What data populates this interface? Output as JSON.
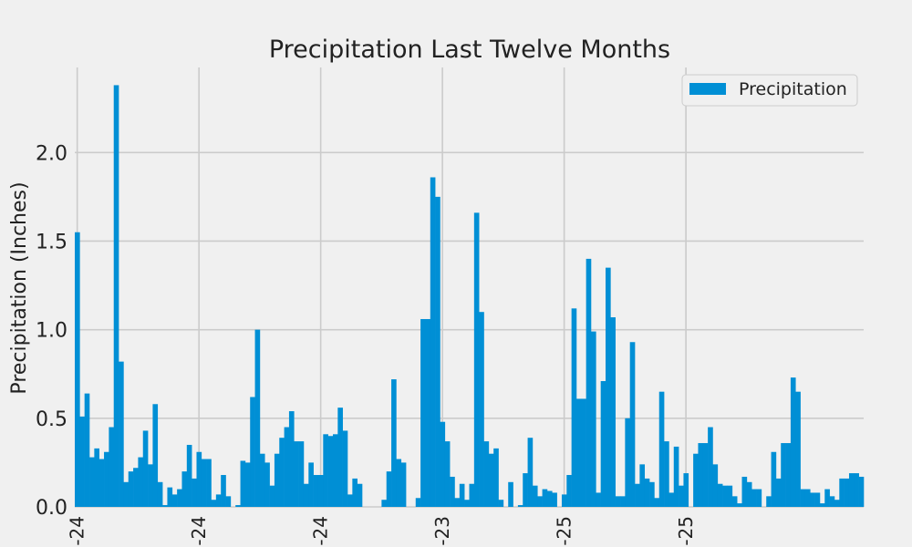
{
  "chart_data": {
    "type": "bar",
    "title": "Precipitation Last Twelve Months",
    "xlabel": "",
    "ylabel": "Precipitation (Inches)",
    "ylim": [
      0,
      2.48
    ],
    "yticks": [
      0.0,
      0.5,
      1.0,
      1.5,
      2.0
    ],
    "ytick_labels": [
      "0.0",
      "0.5",
      "1.0",
      "1.5",
      "2.0"
    ],
    "xtick_labels": [
      "-24",
      "-24",
      "-24",
      "-23",
      "-25",
      "-25"
    ],
    "xtick_positions": [
      0,
      25,
      50,
      75,
      100,
      125
    ],
    "grid": true,
    "legend": {
      "entries": [
        "Precipitation"
      ],
      "placement": "top-right"
    },
    "colors": {
      "bar": "#008fd5",
      "background": "#f0f0f0",
      "grid": "#cbcbcb"
    },
    "series": [
      {
        "name": "Precipitation",
        "values": [
          1.55,
          0.51,
          0.64,
          0.28,
          0.33,
          0.27,
          0.31,
          0.45,
          2.38,
          0.82,
          0.14,
          0.2,
          0.22,
          0.28,
          0.43,
          0.24,
          0.58,
          0.14,
          0.01,
          0.11,
          0.07,
          0.1,
          0.2,
          0.35,
          0.16,
          0.31,
          0.27,
          0.27,
          0.04,
          0.07,
          0.18,
          0.06,
          0.0,
          0.01,
          0.26,
          0.25,
          0.62,
          1.0,
          0.3,
          0.25,
          0.12,
          0.3,
          0.39,
          0.45,
          0.54,
          0.37,
          0.37,
          0.13,
          0.25,
          0.18,
          0.18,
          0.41,
          0.4,
          0.41,
          0.56,
          0.43,
          0.07,
          0.16,
          0.13,
          0.0,
          0.0,
          0.0,
          0.0,
          0.04,
          0.2,
          0.72,
          0.27,
          0.25,
          0.0,
          0.0,
          0.05,
          1.06,
          1.06,
          1.86,
          1.75,
          0.48,
          0.37,
          0.17,
          0.05,
          0.13,
          0.04,
          0.13,
          1.66,
          1.1,
          0.37,
          0.3,
          0.33,
          0.04,
          0.0,
          0.14,
          0.0,
          0.01,
          0.19,
          0.39,
          0.12,
          0.06,
          0.1,
          0.09,
          0.08,
          0.0,
          0.07,
          0.18,
          1.12,
          0.61,
          0.61,
          1.4,
          0.99,
          0.08,
          0.71,
          1.35,
          1.07,
          0.06,
          0.06,
          0.5,
          0.93,
          0.13,
          0.24,
          0.16,
          0.14,
          0.05,
          0.65,
          0.37,
          0.08,
          0.34,
          0.12,
          0.19,
          0.0,
          0.3,
          0.36,
          0.36,
          0.45,
          0.24,
          0.13,
          0.12,
          0.12,
          0.06,
          0.02,
          0.17,
          0.14,
          0.1,
          0.1,
          0.0,
          0.06,
          0.31,
          0.16,
          0.36,
          0.36,
          0.73,
          0.65,
          0.1,
          0.1,
          0.08,
          0.08,
          0.02,
          0.1,
          0.06,
          0.04,
          0.16,
          0.16,
          0.19,
          0.19,
          0.17
        ]
      }
    ]
  }
}
